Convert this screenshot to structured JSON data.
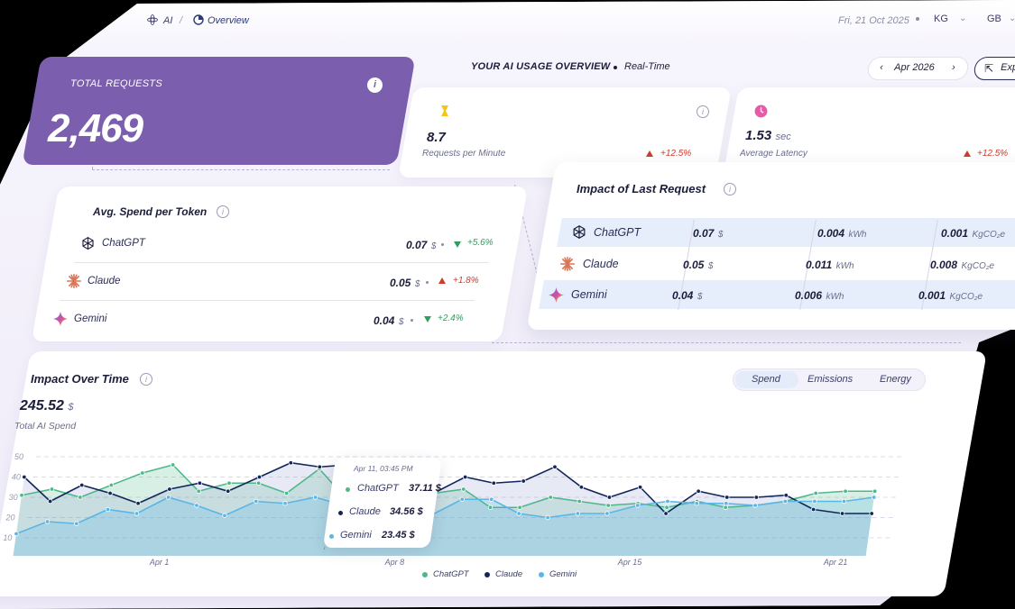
{
  "breadcrumb": {
    "root": "AI",
    "separator": "/",
    "current": "Overview"
  },
  "header": {
    "date": "Fri, 21 Oct 2025",
    "currency": "KG",
    "region": "GB",
    "overview_title": "YOUR AI USAGE OVERVIEW",
    "overview_mode": "Real-Time",
    "month": "Apr 2026",
    "export_label": "Exp"
  },
  "total_requests": {
    "label": "TOTAL REQUESTS",
    "value": "2,469"
  },
  "metrics": [
    {
      "value": "8.7",
      "unit": "",
      "label": "Requests per Minute",
      "delta": "+12.5%",
      "icon": "hourglass-icon",
      "color": "#f5c518"
    },
    {
      "value": "1.53",
      "unit": "sec",
      "label": "Average Latency",
      "delta": "+12.5%",
      "icon": "clock-icon",
      "color": "#e85aa8"
    }
  ],
  "spend_per_token": {
    "title": "Avg. Spend per Token",
    "rows": [
      {
        "model": "ChatGPT",
        "value": "0.07",
        "unit": "$",
        "delta": "+5.6%",
        "direction": "down",
        "icon": "openai-icon"
      },
      {
        "model": "Claude",
        "value": "0.05",
        "unit": "$",
        "delta": "+1.8%",
        "direction": "up",
        "icon": "claude-icon"
      },
      {
        "model": "Gemini",
        "value": "0.04",
        "unit": "$",
        "delta": "+2.4%",
        "direction": "down",
        "icon": "gemini-icon"
      }
    ]
  },
  "impact_last": {
    "title": "Impact of Last Request",
    "rows": [
      {
        "model": "ChatGPT",
        "cost": "0.07",
        "cost_unit": "$",
        "energy": "0.004",
        "energy_unit": "kWh",
        "emissions": "0.001",
        "emissions_unit": "KgCO₂e",
        "icon": "openai-icon"
      },
      {
        "model": "Claude",
        "cost": "0.05",
        "cost_unit": "$",
        "energy": "0.011",
        "energy_unit": "kWh",
        "emissions": "0.008",
        "emissions_unit": "KgCO₂e",
        "icon": "claude-icon"
      },
      {
        "model": "Gemini",
        "cost": "0.04",
        "cost_unit": "$",
        "energy": "0.006",
        "energy_unit": "kWh",
        "emissions": "0.001",
        "emissions_unit": "KgCO₂e",
        "icon": "gemini-icon"
      }
    ]
  },
  "impact_over_time": {
    "title": "Impact Over Time",
    "total_value": "245.52",
    "total_unit": "$",
    "total_label": "Total AI Spend",
    "tabs": [
      "Spend",
      "Emissions",
      "Energy"
    ],
    "active_tab": "Spend"
  },
  "tooltip": {
    "date": "Apr 11, 03:45 PM",
    "rows": [
      {
        "name": "ChatGPT",
        "value": "37.11 $"
      },
      {
        "name": "Claude",
        "value": "34.56 $"
      },
      {
        "name": "Gemini",
        "value": "23.45 $"
      }
    ]
  },
  "colors": {
    "chatgpt": "#4fb88a",
    "claude": "#13265a",
    "gemini": "#59b6e6",
    "accent": "#7b5fae"
  },
  "chart_data": {
    "type": "line",
    "x_ticks": [
      "Apr 1",
      "Apr 8",
      "Apr 15",
      "Apr 21"
    ],
    "y_ticks": [
      "50",
      "40",
      "30",
      "20",
      "10"
    ],
    "ylim": [
      10,
      50
    ],
    "series": [
      {
        "name": "ChatGPT",
        "values": [
          31,
          34,
          30,
          36,
          42,
          46,
          33,
          37,
          37,
          32,
          44,
          30,
          29,
          30,
          32,
          34,
          25,
          25,
          30,
          28,
          26,
          27,
          25,
          28,
          25,
          26,
          28,
          32,
          33,
          33
        ]
      },
      {
        "name": "Claude",
        "values": [
          40,
          28,
          36,
          32,
          27,
          34,
          37,
          33,
          40,
          47,
          45,
          46,
          28,
          34,
          32,
          40,
          37,
          38,
          45,
          35,
          30,
          35,
          22,
          33,
          30,
          30,
          31,
          24,
          22,
          22
        ]
      },
      {
        "name": "Gemini",
        "values": [
          12,
          18,
          17,
          24,
          22,
          30,
          26,
          21,
          28,
          27,
          30,
          26,
          27,
          25,
          21,
          29,
          29,
          22,
          20,
          22,
          22,
          26,
          28,
          27,
          27,
          26,
          28,
          28,
          28,
          30
        ]
      }
    ]
  }
}
